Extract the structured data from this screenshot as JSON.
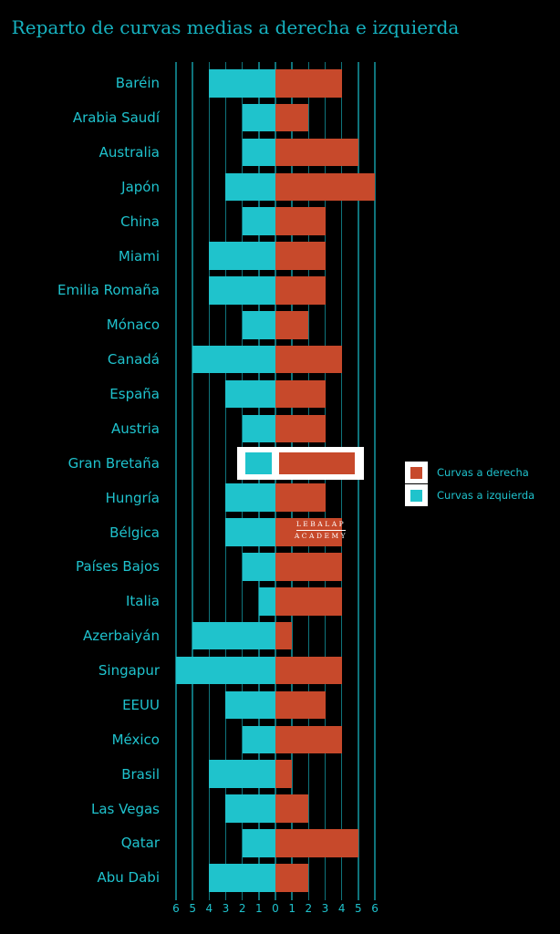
{
  "watermark": {
    "line1": "LEBALAP",
    "line2": "ACADEMY"
  },
  "legend": {
    "items": [
      {
        "label": "Curvas a derecha",
        "series": "Curvas a derecha"
      },
      {
        "label": "Curvas a izquierda",
        "series": "Curvas a izquierda"
      }
    ]
  },
  "chart_data": {
    "type": "bar",
    "variant": "diverging-horizontal",
    "title": "Reparto de curvas medias a derecha e izquierda",
    "categories": [
      "Baréin",
      "Arabia Saudí",
      "Australia",
      "Japón",
      "China",
      "Miami",
      "Emilia Romaña",
      "Mónaco",
      "Canadá",
      "España",
      "Austria",
      "Gran Bretaña",
      "Hungría",
      "Bélgica",
      "Países Bajos",
      "Italia",
      "Azerbaiyán",
      "Singapur",
      "EEUU",
      "México",
      "Brasil",
      "Las Vegas",
      "Qatar",
      "Abu Dabi"
    ],
    "series": [
      {
        "name": "Curvas a izquierda",
        "side": "left",
        "color": "#1fc3cc",
        "values": [
          4,
          2,
          2,
          3,
          2,
          4,
          4,
          2,
          5,
          3,
          2,
          2,
          3,
          3,
          2,
          1,
          5,
          6,
          3,
          2,
          4,
          3,
          2,
          4
        ]
      },
      {
        "name": "Curvas a derecha",
        "side": "right",
        "color": "#c7492b",
        "values": [
          4,
          2,
          5,
          6,
          3,
          3,
          3,
          2,
          4,
          3,
          3,
          5,
          3,
          4,
          4,
          4,
          1,
          4,
          3,
          4,
          1,
          2,
          5,
          2
        ]
      }
    ],
    "x_axis": {
      "range": [
        -6,
        6
      ],
      "ticks": [
        "6",
        "5",
        "4",
        "3",
        "2",
        "1",
        "0",
        "1",
        "2",
        "3",
        "4",
        "5",
        "6"
      ]
    },
    "highlighted_category": "Gran Bretaña",
    "grid": true,
    "legend_position": "right",
    "colors": {
      "background": "#000000",
      "title": "#16b2c0",
      "text": "#1fc2cd",
      "grid": "#0f747c",
      "highlight_frame": "#ffffff",
      "watermark": "#ffffff"
    }
  }
}
